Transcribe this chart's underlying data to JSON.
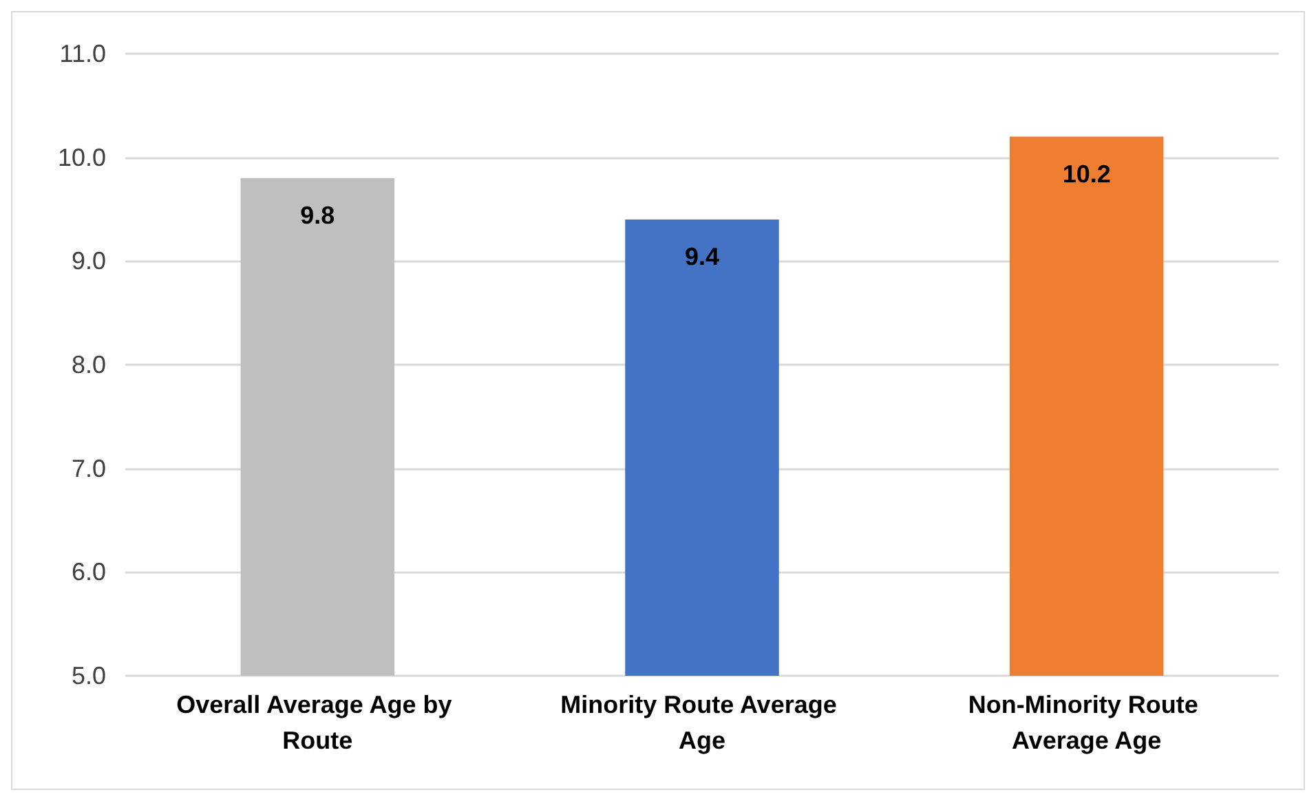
{
  "chart_data": {
    "type": "bar",
    "categories": [
      "Overall Average Age by Route",
      "Minority Route Average Age",
      "Non-Minority Route Average Age"
    ],
    "values": [
      9.8,
      9.4,
      10.2
    ],
    "colors": [
      "#bfbfbf",
      "#4472c4",
      "#ed7d31"
    ],
    "ylim": [
      5,
      11
    ],
    "yticks": [
      {
        "value": 5,
        "label": "5.0"
      },
      {
        "value": 6,
        "label": "6.0"
      },
      {
        "value": 7,
        "label": "7.0"
      },
      {
        "value": 8,
        "label": "8.0"
      },
      {
        "value": 9,
        "label": "9.0"
      },
      {
        "value": 10,
        "label": "10.0"
      },
      {
        "value": 11,
        "label": "11.0"
      }
    ],
    "data_labels": true,
    "grid": "y"
  }
}
